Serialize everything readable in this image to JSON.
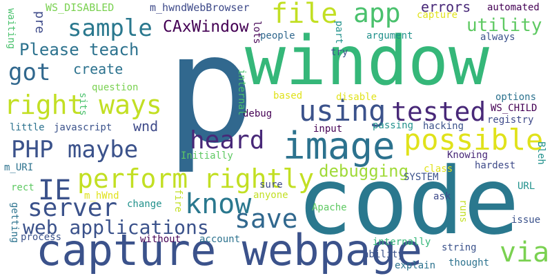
{
  "wordcloud": {
    "background": "#ffffff",
    "palette": {
      "purple": "#440154",
      "indigo": "#3b528b",
      "navy": "#31688e",
      "teal": "#21918c",
      "green": "#5ec962",
      "lime": "#a0da39",
      "yellow": "#e0e21b"
    },
    "words": [
      {
        "text": "p",
        "color": "#31688e"
      },
      {
        "text": "window",
        "color": "#35b779"
      },
      {
        "text": "code",
        "color": "#2a788e"
      },
      {
        "text": "capture webpage",
        "color": "#3b528b"
      },
      {
        "text": "image",
        "color": "#2c728e"
      },
      {
        "text": "using",
        "color": "#3b528b"
      },
      {
        "text": "tested",
        "color": "#482878"
      },
      {
        "text": "possible",
        "color": "#e0e21b"
      },
      {
        "text": "heard",
        "color": "#482878"
      },
      {
        "text": "perform rightly",
        "color": "#c2df23"
      },
      {
        "text": "PHP maybe",
        "color": "#3b528b"
      },
      {
        "text": "server",
        "color": "#3b528b"
      },
      {
        "text": "know",
        "color": "#2a788e"
      },
      {
        "text": "save",
        "color": "#31688e"
      },
      {
        "text": "via",
        "color": "#7ad151"
      },
      {
        "text": "IE",
        "color": "#3b528b"
      },
      {
        "text": "web applications",
        "color": "#3b528b"
      },
      {
        "text": "right ways",
        "color": "#c2df23"
      },
      {
        "text": "file",
        "color": "#c2df23"
      },
      {
        "text": "app",
        "color": "#4ac16d"
      },
      {
        "text": "sample",
        "color": "#2a788e"
      },
      {
        "text": "got",
        "color": "#31688e"
      },
      {
        "text": "Please teach",
        "color": "#2c728e"
      },
      {
        "text": "CAxWindow",
        "color": "#440154"
      },
      {
        "text": "utility",
        "color": "#5ec962"
      },
      {
        "text": "debugging",
        "color": "#a0da39"
      },
      {
        "text": "create",
        "color": "#2c728e"
      },
      {
        "text": "errors",
        "color": "#482878"
      },
      {
        "text": "m_hwndWebBrowser",
        "color": "#3e4a89"
      },
      {
        "text": "WS_DISABLED",
        "color": "#7ad151"
      },
      {
        "text": "capture",
        "color": "#e0e21b"
      },
      {
        "text": "automated",
        "color": "#440154"
      },
      {
        "text": "always",
        "color": "#3b528b"
      },
      {
        "text": "argument",
        "color": "#21918c"
      },
      {
        "text": "people",
        "color": "#31688e"
      },
      {
        "text": "try",
        "color": "#3b528b"
      },
      {
        "text": "question",
        "color": "#7ad151"
      },
      {
        "text": "based",
        "color": "#e0e21b"
      },
      {
        "text": "disable",
        "color": "#e0e21b"
      },
      {
        "text": "options",
        "color": "#2c728e"
      },
      {
        "text": "WS_CHILD",
        "color": "#440154"
      },
      {
        "text": "registry",
        "color": "#3e4a89"
      },
      {
        "text": "debug",
        "color": "#440154"
      },
      {
        "text": "input",
        "color": "#440154"
      },
      {
        "text": "passing",
        "color": "#21918c"
      },
      {
        "text": "hacking",
        "color": "#3b528b"
      },
      {
        "text": "little",
        "color": "#2c728e"
      },
      {
        "text": "javascript",
        "color": "#3b528b"
      },
      {
        "text": "wnd",
        "color": "#3e4a89"
      },
      {
        "text": "Initially",
        "color": "#5ec962"
      },
      {
        "text": "Knowing",
        "color": "#482878"
      },
      {
        "text": "class",
        "color": "#e0e21b"
      },
      {
        "text": "hardest",
        "color": "#3e4a89"
      },
      {
        "text": "SYSTEM",
        "color": "#3b528b"
      },
      {
        "text": "ask",
        "color": "#3e4a89"
      },
      {
        "text": "sure",
        "color": "#3e4a89"
      },
      {
        "text": "anyone",
        "color": "#c2df23"
      },
      {
        "text": "change",
        "color": "#21918c"
      },
      {
        "text": "m_URI",
        "color": "#2c728e"
      },
      {
        "text": "rect",
        "color": "#5ec962"
      },
      {
        "text": "m_hWnd",
        "color": "#e0e21b"
      },
      {
        "text": "URL",
        "color": "#21918c"
      },
      {
        "text": "Apache",
        "color": "#5ec962"
      },
      {
        "text": "issue",
        "color": "#3b528b"
      },
      {
        "text": "process",
        "color": "#3b528b"
      },
      {
        "text": "without",
        "color": "#440154"
      },
      {
        "text": "account",
        "color": "#2c728e"
      },
      {
        "text": "internally",
        "color": "#35b779"
      },
      {
        "text": "string",
        "color": "#3b528b"
      },
      {
        "text": "ability",
        "color": "#3b528b"
      },
      {
        "text": "explain",
        "color": "#2c728e"
      },
      {
        "text": "thought",
        "color": "#2c728e"
      },
      {
        "text": "pre",
        "color": "#3e4a89"
      },
      {
        "text": "waiting",
        "color": "#4ac16d"
      },
      {
        "text": "sits",
        "color": "#4ac16d"
      },
      {
        "text": "lots",
        "color": "#440154"
      },
      {
        "text": "part",
        "color": "#21918c"
      },
      {
        "text": "internal",
        "color": "#4ac16d"
      },
      {
        "text": "fire",
        "color": "#c2df23"
      },
      {
        "text": "runs",
        "color": "#c2df23"
      },
      {
        "text": "Bleh",
        "color": "#21918c"
      },
      {
        "text": "getting",
        "color": "#2c728e"
      }
    ]
  }
}
